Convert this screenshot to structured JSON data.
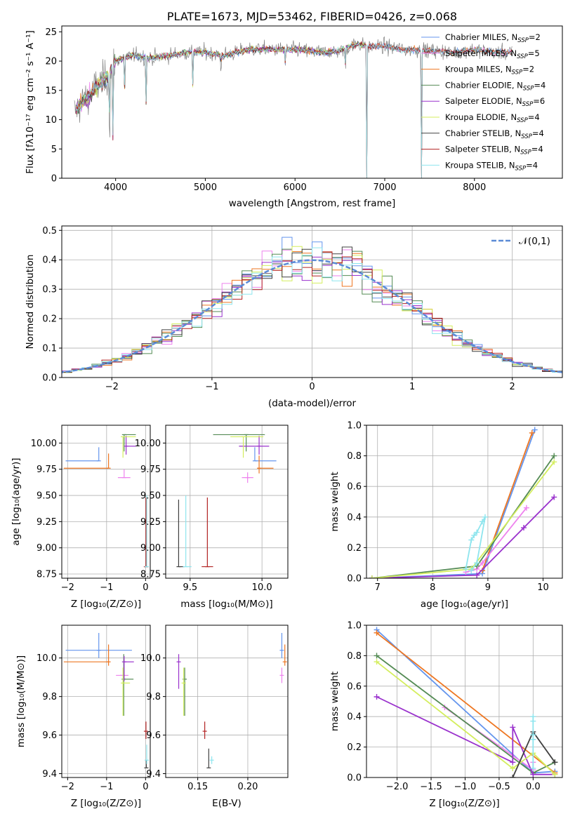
{
  "colors": {
    "chabrier_miles": "#6495ed",
    "salpeter_miles": "#ee82ee",
    "kroupa_miles": "#ee7621",
    "chabrier_elodie": "#548b54",
    "salpeter_elodie": "#9a32cd",
    "kroupa_elodie": "#d4ee5e",
    "chabrier_stelib": "#404040",
    "salpeter_stelib": "#b22222",
    "kroupa_stelib": "#8ee5ee",
    "normal_curve": "#5b8bd6",
    "observed_spectrum": "#808080"
  },
  "chart_data": [
    {
      "id": "spectrum",
      "type": "line",
      "title": "PLATE=1673, MJD=53462, FIBERID=0426, z=0.068",
      "xlabel": "wavelength [Angstrom, rest frame]",
      "ylabel": "Flux [fλ10⁻¹⁷ erg cm⁻² s⁻¹ A⁻¹]",
      "xlim": [
        3400,
        8980
      ],
      "ylim": [
        0,
        26
      ],
      "xticks": [
        4000,
        5000,
        6000,
        7000,
        8000
      ],
      "yticks": [
        0,
        5,
        10,
        15,
        20,
        25
      ],
      "legend_position": "right",
      "continuum": {
        "x": [
          3530,
          3600,
          3700,
          3800,
          3900,
          4000,
          4200,
          4400,
          4600,
          4800,
          5000,
          5200,
          5500,
          5800,
          6000,
          6300,
          6500,
          6700,
          6800,
          7000,
          7200,
          7500,
          7800,
          8000,
          8200,
          8500
        ],
        "y": [
          11,
          12.5,
          14,
          16,
          17,
          20,
          21,
          20.5,
          21,
          21.5,
          21.5,
          21,
          22,
          22,
          22,
          21.5,
          21.8,
          23,
          22.5,
          22.5,
          22,
          21.8,
          21.5,
          22,
          21.5,
          21.5
        ]
      },
      "dips": [
        {
          "x": 3934,
          "y": 0
        },
        {
          "x": 3969,
          "y": 5
        },
        {
          "x": 4102,
          "y": 13
        },
        {
          "x": 4340,
          "y": 13
        },
        {
          "x": 4861,
          "y": 15
        },
        {
          "x": 5175,
          "y": 17
        },
        {
          "x": 5893,
          "y": 18
        },
        {
          "x": 6563,
          "y": 17
        },
        {
          "x": 6800,
          "y": 0
        },
        {
          "x": 7410,
          "y": 0
        }
      ],
      "series": [
        {
          "name": "Chabrier MILES, N_SSP=2",
          "color_key": "chabrier_miles",
          "end": 8420
        },
        {
          "name": "Salpeter MILES, N_SSP=5",
          "color_key": "salpeter_miles",
          "end": 8420
        },
        {
          "name": "Kroupa MILES, N_SSP=2",
          "color_key": "kroupa_miles",
          "end": 8420
        },
        {
          "name": "Chabrier ELODIE, N_SSP=4",
          "color_key": "chabrier_elodie",
          "end": 6780
        },
        {
          "name": "Salpeter ELODIE, N_SSP=6",
          "color_key": "salpeter_elodie",
          "end": 6780
        },
        {
          "name": "Kroupa ELODIE, N_SSP=4",
          "color_key": "kroupa_elodie",
          "end": 6780
        },
        {
          "name": "Chabrier STELIB, N_SSP=4",
          "color_key": "chabrier_stelib",
          "end": 8420
        },
        {
          "name": "Salpeter STELIB, N_SSP=4",
          "color_key": "salpeter_stelib",
          "end": 8420
        },
        {
          "name": "Kroupa STELIB, N_SSP=4",
          "color_key": "kroupa_stelib",
          "end": 8420
        }
      ]
    },
    {
      "id": "residuals",
      "type": "line",
      "xlabel": "(data-model)/error",
      "ylabel": "Normed distribution",
      "xlim": [
        -2.5,
        2.5
      ],
      "ylim": [
        0,
        0.515
      ],
      "xticks": [
        -2,
        -1,
        0,
        1,
        2
      ],
      "yticks": [
        0.0,
        0.1,
        0.2,
        0.3,
        0.4,
        0.5
      ],
      "grid": true,
      "legend": "𝒩(0,1)",
      "legend_position": "top-right",
      "bin_width": 0.1,
      "normal": {
        "mean": 0,
        "sigma": 1
      }
    },
    {
      "id": "age_vs_Z",
      "type": "scatter",
      "xlabel": "Z [log₁₀(Z/Z⊙)]",
      "ylabel": "age  [log₁₀(age/yr)]",
      "xlim": [
        -2.15,
        0.12
      ],
      "ylim": [
        8.71,
        10.17
      ],
      "xticks": [
        -2,
        -1,
        0
      ],
      "yticks": [
        8.75,
        9.0,
        9.25,
        9.5,
        9.75,
        10.0
      ],
      "grid": true,
      "points": [
        {
          "color_key": "chabrier_miles",
          "x": -1.2,
          "y": 9.83,
          "xerr": [
            0.85,
            0
          ],
          "yerr": [
            0,
            0.13
          ]
        },
        {
          "color_key": "kroupa_miles",
          "x": -0.95,
          "y": 9.76,
          "xerr": [
            1.15,
            0
          ],
          "yerr": [
            0,
            0.14
          ]
        },
        {
          "color_key": "salpeter_miles",
          "x": -0.55,
          "y": 9.67,
          "xerr": [
            0.16,
            0.16
          ],
          "yerr": [
            0,
            0.08
          ]
        },
        {
          "color_key": "chabrier_elodie",
          "x": -0.55,
          "y": 10.08,
          "xerr": [
            0,
            0.3
          ],
          "yerr": [
            0.16,
            0
          ]
        },
        {
          "color_key": "salpeter_elodie",
          "x": -0.5,
          "y": 9.97,
          "xerr": [
            0,
            0.25
          ],
          "yerr": [
            0.08,
            0.1
          ]
        },
        {
          "color_key": "kroupa_elodie",
          "x": -0.58,
          "y": 10.06,
          "xerr": [
            0,
            0.33
          ],
          "yerr": [
            0.2,
            0
          ]
        },
        {
          "color_key": "chabrier_stelib",
          "x": 0.02,
          "y": 8.82,
          "xerr": [
            0,
            0
          ],
          "yerr": [
            0,
            0.65
          ]
        },
        {
          "color_key": "salpeter_stelib",
          "x": 0.01,
          "y": 8.82,
          "xerr": [
            0,
            0
          ],
          "yerr": [
            0,
            0.66
          ]
        },
        {
          "color_key": "kroupa_stelib",
          "x": 0.03,
          "y": 8.82,
          "xerr": [
            0,
            0
          ],
          "yerr": [
            0,
            0.68
          ]
        }
      ]
    },
    {
      "id": "age_vs_mass",
      "type": "scatter",
      "xlabel": "mass [log₁₀(M/M⊙)]",
      "xlim": [
        9.33,
        10.18
      ],
      "ylim": [
        8.71,
        10.17
      ],
      "xticks": [
        9.5,
        10.0
      ],
      "yticks": [
        8.75,
        9.0,
        9.25,
        9.5,
        9.75,
        10.0
      ],
      "grid": true,
      "points": [
        {
          "color_key": "chabrier_miles",
          "x": 9.95,
          "y": 9.83,
          "xerr": [
            0,
            0.15
          ],
          "yerr": [
            0,
            0.13
          ]
        },
        {
          "color_key": "kroupa_miles",
          "x": 9.98,
          "y": 9.76,
          "xerr": [
            0.01,
            0.1
          ],
          "yerr": [
            0.05,
            0.12
          ]
        },
        {
          "color_key": "salpeter_miles",
          "x": 9.9,
          "y": 9.67,
          "xerr": [
            0.04,
            0.04
          ],
          "yerr": [
            0.05,
            0.05
          ]
        },
        {
          "color_key": "chabrier_elodie",
          "x": 9.89,
          "y": 10.08,
          "xerr": [
            0.23,
            0.13
          ],
          "yerr": [
            0.16,
            0
          ]
        },
        {
          "color_key": "salpeter_elodie",
          "x": 9.98,
          "y": 9.97,
          "xerr": [
            0.14,
            0.07
          ],
          "yerr": [
            0.08,
            0.1
          ]
        },
        {
          "color_key": "kroupa_elodie",
          "x": 9.87,
          "y": 10.06,
          "xerr": [
            0.09,
            0.14
          ],
          "yerr": [
            0.2,
            0
          ]
        },
        {
          "color_key": "chabrier_stelib",
          "x": 9.42,
          "y": 8.82,
          "xerr": [
            0,
            0.04
          ],
          "yerr": [
            0,
            0.64
          ]
        },
        {
          "color_key": "salpeter_stelib",
          "x": 9.62,
          "y": 8.82,
          "xerr": [
            0.04,
            0.04
          ],
          "yerr": [
            0,
            0.66
          ]
        },
        {
          "color_key": "kroupa_stelib",
          "x": 9.47,
          "y": 8.82,
          "xerr": [
            0.02,
            0.04
          ],
          "yerr": [
            0,
            0.68
          ]
        }
      ]
    },
    {
      "id": "weight_vs_age",
      "type": "line",
      "xlabel": "age  [log₁₀(age/yr)]",
      "ylabel": "mass weight",
      "xlim": [
        6.8,
        10.35
      ],
      "ylim": [
        0,
        1
      ],
      "xticks": [
        7,
        8,
        9,
        10
      ],
      "yticks": [
        0.0,
        0.2,
        0.4,
        0.6,
        0.8,
        1.0
      ],
      "grid": true,
      "series": [
        {
          "color_key": "chabrier_miles",
          "x": [
            6.9,
            8.9,
            9.85
          ],
          "y": [
            0.0,
            0.03,
            0.97
          ]
        },
        {
          "color_key": "kroupa_miles",
          "x": [
            8.9,
            9.8
          ],
          "y": [
            0.05,
            0.95
          ]
        },
        {
          "color_key": "salpeter_miles",
          "x": [
            8.6,
            8.7,
            8.8,
            8.9,
            9.7
          ],
          "y": [
            0.04,
            0.05,
            0.06,
            0.1,
            0.46
          ]
        },
        {
          "color_key": "chabrier_elodie",
          "x": [
            6.9,
            8.8,
            10.2
          ],
          "y": [
            0.0,
            0.08,
            0.8
          ]
        },
        {
          "color_key": "salpeter_elodie",
          "x": [
            6.9,
            8.8,
            9.65,
            10.2
          ],
          "y": [
            0.0,
            0.02,
            0.33,
            0.53
          ]
        },
        {
          "color_key": "kroupa_elodie",
          "x": [
            6.9,
            8.7,
            10.2
          ],
          "y": [
            0.0,
            0.06,
            0.76
          ]
        },
        {
          "color_key": "kroupa_stelib",
          "x": [
            8.6,
            8.7,
            8.75,
            8.8,
            8.9,
            8.95,
            8.8,
            8.7
          ],
          "y": [
            0.06,
            0.25,
            0.28,
            0.3,
            0.37,
            0.4,
            0.1,
            0.05
          ]
        }
      ]
    },
    {
      "id": "mass_vs_Z",
      "type": "scatter",
      "xlabel": "Z [log₁₀(Z/Z⊙)]",
      "ylabel": "mass [log₁₀(M/M⊙)]",
      "xlim": [
        -2.15,
        0.12
      ],
      "ylim": [
        9.38,
        10.17
      ],
      "xticks": [
        -2,
        -1,
        0
      ],
      "yticks": [
        9.4,
        9.6,
        9.8,
        10.0
      ],
      "grid": true,
      "points": [
        {
          "color_key": "chabrier_miles",
          "x": -1.2,
          "y": 10.04,
          "xerr": [
            0.85,
            0.85
          ],
          "yerr": [
            0.04,
            0.09
          ]
        },
        {
          "color_key": "kroupa_miles",
          "x": -0.95,
          "y": 9.98,
          "xerr": [
            1.15,
            0
          ],
          "yerr": [
            0.02,
            0.09
          ]
        },
        {
          "color_key": "salpeter_miles",
          "x": -0.6,
          "y": 9.91,
          "xerr": [
            0.16,
            0.16
          ],
          "yerr": [
            0,
            0
          ]
        },
        {
          "color_key": "chabrier_elodie",
          "x": -0.56,
          "y": 9.89,
          "xerr": [
            0,
            0.25
          ],
          "yerr": [
            0.19,
            0.13
          ]
        },
        {
          "color_key": "salpeter_elodie",
          "x": -0.55,
          "y": 9.98,
          "xerr": [
            0,
            0.25
          ],
          "yerr": [
            0.1,
            0.03
          ]
        },
        {
          "color_key": "kroupa_elodie",
          "x": -0.58,
          "y": 9.87,
          "xerr": [
            0,
            0.18
          ],
          "yerr": [
            0.17,
            0.08
          ]
        },
        {
          "color_key": "chabrier_stelib",
          "x": 0.02,
          "y": 9.43,
          "xerr": [
            0,
            0
          ],
          "yerr": [
            0,
            0.04
          ]
        },
        {
          "color_key": "salpeter_stelib",
          "x": 0.01,
          "y": 9.62,
          "xerr": [
            0,
            0
          ],
          "yerr": [
            0.04,
            0.05
          ]
        },
        {
          "color_key": "kroupa_stelib",
          "x": 0.03,
          "y": 9.47,
          "xerr": [
            0,
            0
          ],
          "yerr": [
            0.02,
            0.08
          ]
        }
      ]
    },
    {
      "id": "mass_vs_EBV",
      "type": "scatter",
      "xlabel": "E(B-V)",
      "xlim": [
        0.118,
        0.24
      ],
      "ylim": [
        9.38,
        10.17
      ],
      "xticks": [
        0.15,
        0.2
      ],
      "yticks": [
        9.4,
        9.6,
        9.8,
        10.0
      ],
      "grid": true,
      "points": [
        {
          "color_key": "chabrier_miles",
          "x": 0.234,
          "y": 10.04,
          "xerr": [
            0,
            0
          ],
          "yerr": [
            0.04,
            0.09
          ]
        },
        {
          "color_key": "kroupa_miles",
          "x": 0.237,
          "y": 9.98,
          "xerr": [
            0,
            0
          ],
          "yerr": [
            0.02,
            0.09
          ]
        },
        {
          "color_key": "salpeter_miles",
          "x": 0.234,
          "y": 9.91,
          "xerr": [
            0,
            0
          ],
          "yerr": [
            0.04,
            0.04
          ]
        },
        {
          "color_key": "chabrier_elodie",
          "x": 0.137,
          "y": 9.89,
          "xerr": [
            0,
            0
          ],
          "yerr": [
            0.19,
            0.06
          ]
        },
        {
          "color_key": "salpeter_elodie",
          "x": 0.131,
          "y": 9.98,
          "xerr": [
            0,
            0
          ],
          "yerr": [
            0.14,
            0.04
          ]
        },
        {
          "color_key": "kroupa_elodie",
          "x": 0.136,
          "y": 9.87,
          "xerr": [
            0,
            0
          ],
          "yerr": [
            0.17,
            0.08
          ]
        },
        {
          "color_key": "chabrier_stelib",
          "x": 0.161,
          "y": 9.43,
          "xerr": [
            0,
            0
          ],
          "yerr": [
            0,
            0.1
          ]
        },
        {
          "color_key": "salpeter_stelib",
          "x": 0.157,
          "y": 9.62,
          "xerr": [
            0,
            0
          ],
          "yerr": [
            0.04,
            0.05
          ]
        },
        {
          "color_key": "kroupa_stelib",
          "x": 0.164,
          "y": 9.47,
          "xerr": [
            0,
            0
          ],
          "yerr": [
            0.02,
            0.02
          ]
        }
      ]
    },
    {
      "id": "weight_vs_Z",
      "type": "line",
      "xlabel": "Z [log₁₀(Z/Z⊙)]",
      "ylabel": "mass weight",
      "xlim": [
        -2.45,
        0.43
      ],
      "ylim": [
        0,
        1
      ],
      "xticks": [
        -2.0,
        -1.5,
        -1.0,
        -0.5,
        0.0
      ],
      "yticks": [
        0.0,
        0.2,
        0.4,
        0.6,
        0.8,
        1.0
      ],
      "grid": true,
      "series": [
        {
          "color_key": "chabrier_miles",
          "x": [
            -2.3,
            0.0,
            0.32
          ],
          "y": [
            0.97,
            0.03,
            0.04
          ]
        },
        {
          "color_key": "kroupa_miles",
          "x": [
            -2.3,
            0.32
          ],
          "y": [
            0.95,
            0.03
          ]
        },
        {
          "color_key": "salpeter_miles",
          "x": [
            -1.3,
            0.0,
            0.0
          ],
          "y": [
            0.46,
            0.05,
            0.1
          ]
        },
        {
          "color_key": "chabrier_elodie",
          "x": [
            -2.3,
            0.0,
            0.32
          ],
          "y": [
            0.8,
            0.03,
            0.1
          ]
        },
        {
          "color_key": "salpeter_elodie",
          "x": [
            -2.3,
            -0.3,
            -0.3,
            0.0,
            0.32
          ],
          "y": [
            0.53,
            0.1,
            0.33,
            0.02,
            0.02
          ]
        },
        {
          "color_key": "kroupa_elodie",
          "x": [
            -2.3,
            -0.3,
            0.0,
            0.32
          ],
          "y": [
            0.76,
            0.06,
            0.16,
            0.02
          ]
        },
        {
          "color_key": "chabrier_stelib",
          "x": [
            -0.3,
            0.0,
            0.32
          ],
          "y": [
            0.0,
            0.3,
            0.1
          ]
        },
        {
          "color_key": "kroupa_stelib",
          "x": [
            0.0,
            0.0,
            0.0,
            0.0,
            0.0
          ],
          "y": [
            0.4,
            0.37,
            0.28,
            0.25,
            0.06
          ]
        }
      ]
    }
  ]
}
